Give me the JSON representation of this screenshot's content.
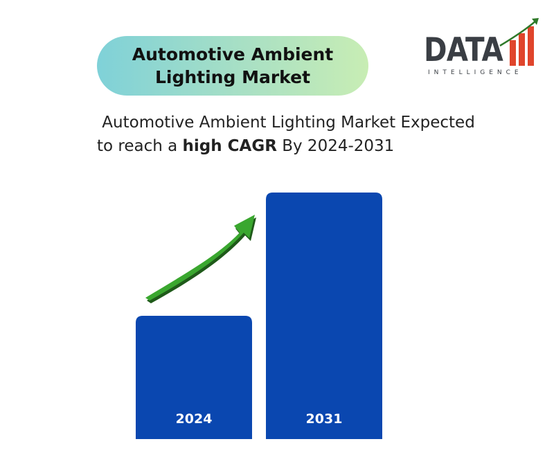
{
  "header": {
    "title_line1": "Automotive Ambient",
    "title_line2": "Lighting Market"
  },
  "logo": {
    "word": "DATA",
    "tagline": "INTELLIGENCE",
    "icon": "rising-bars-logo-icon"
  },
  "subtitle": {
    "line1": " Automotive Ambient Lighting Market Expected",
    "line2_prefix": "to reach a ",
    "line2_bold": "high CAGR",
    "line2_suffix": " By 2024-2031"
  },
  "chart_data": {
    "type": "bar",
    "categories": [
      "2024",
      "2031"
    ],
    "values": [
      1,
      2
    ],
    "ylim": [
      0,
      2
    ],
    "grid": false,
    "axes_visible": false,
    "bar_color": "#0a47b0",
    "arrow_color": "#3aa72f",
    "arrow_icon": "growth-arrow-icon"
  }
}
